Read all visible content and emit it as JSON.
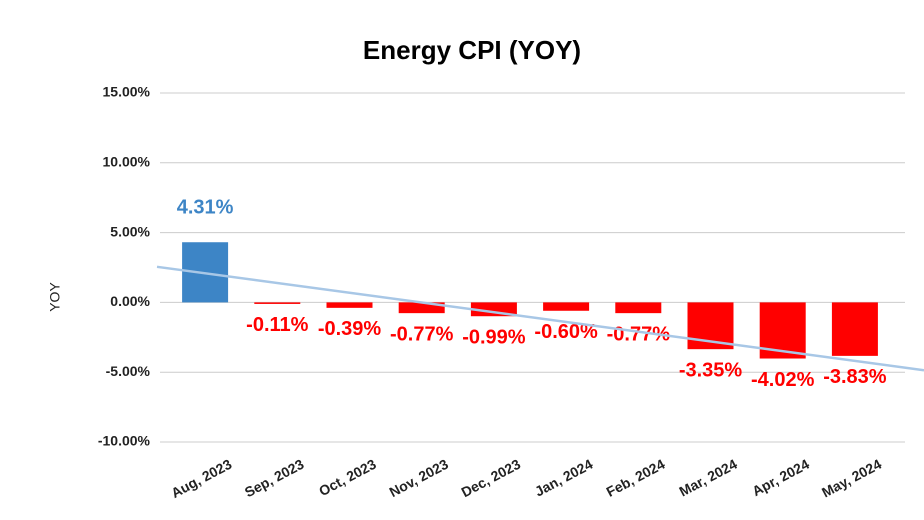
{
  "chart_data": {
    "type": "bar",
    "title": "Energy CPI (YOY)",
    "y_label": "YOY",
    "categories": [
      "Aug, 2023",
      "Sep, 2023",
      "Oct, 2023",
      "Nov, 2023",
      "Dec, 2023",
      "Jan, 2024",
      "Feb, 2024",
      "Mar, 2024",
      "Apr, 2024",
      "May, 2024"
    ],
    "values": [
      4.31,
      -0.11,
      -0.39,
      -0.77,
      -0.99,
      -0.6,
      -0.77,
      -3.35,
      -4.02,
      -3.83
    ],
    "value_labels": [
      "4.31%",
      "-0.11%",
      "-0.39%",
      "-0.77%",
      "-0.99%",
      "-0.60%",
      "-0.77%",
      "-3.35%",
      "-4.02%",
      "-3.83%"
    ],
    "positive_color": "#3d85c6",
    "negative_color": "#ff0000",
    "trendline_color": "#a8c7e6",
    "ylim": [
      -10,
      15
    ],
    "yticks": [
      {
        "value": -10,
        "label": "-10.00%"
      },
      {
        "value": -5,
        "label": "-5.00%"
      },
      {
        "value": 0,
        "label": "0.00%"
      },
      {
        "value": 5,
        "label": "5.00%"
      },
      {
        "value": 10,
        "label": "10.00%"
      },
      {
        "value": 15,
        "label": "15.00%"
      }
    ],
    "grid": true
  }
}
